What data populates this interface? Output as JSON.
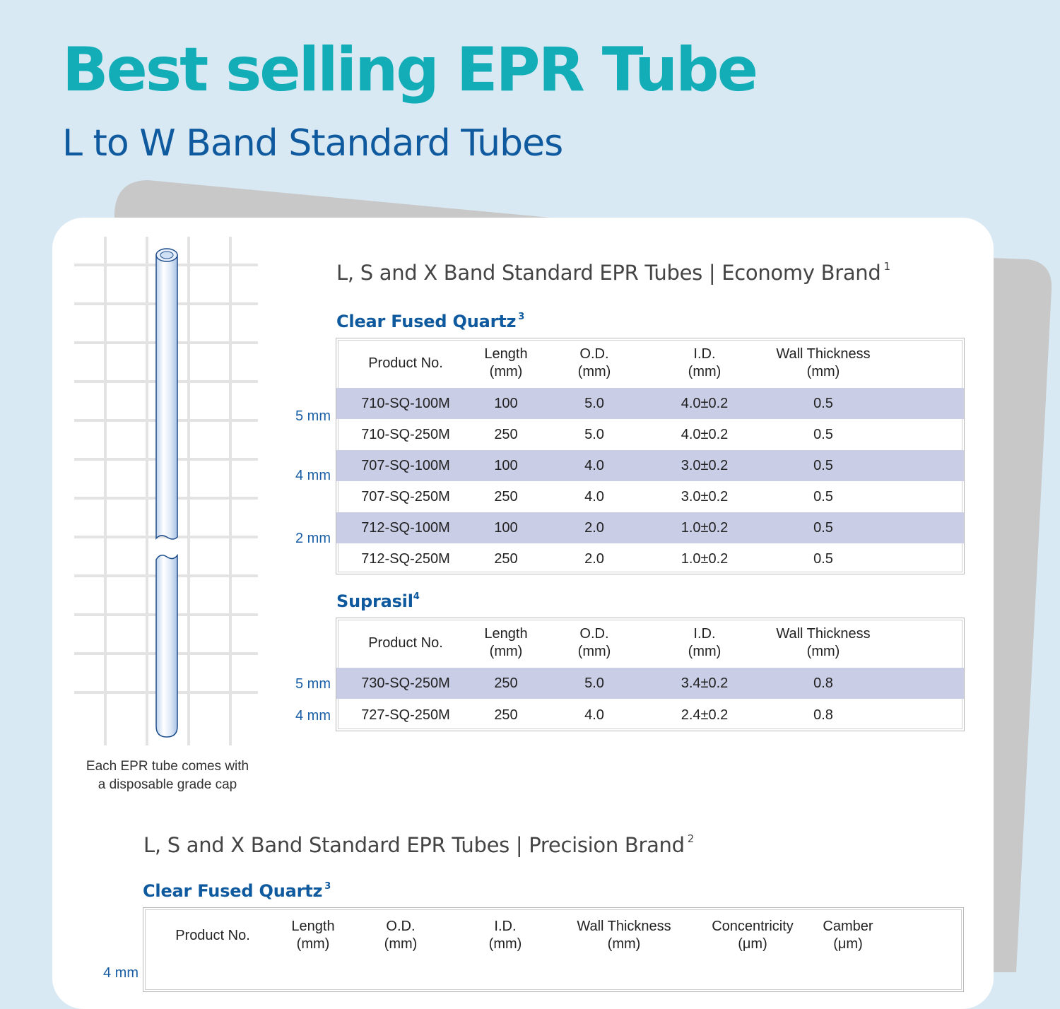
{
  "page": {
    "title": "Best selling EPR Tube",
    "subtitle": "L to W Band Standard Tubes"
  },
  "illustration": {
    "caption": "Each EPR tube comes with\na disposable grade cap"
  },
  "economy": {
    "title": "L, S and X Band Standard EPR Tubes  |  Economy Brand",
    "title_sup": "1",
    "quartz": {
      "title": "Clear Fused Quartz",
      "sup": "3",
      "headers": [
        "Product No.",
        "Length\n(mm)",
        "O.D.\n(mm)",
        "I.D.\n(mm)",
        "Wall Thickness\n(mm)"
      ],
      "rows": [
        [
          "710-SQ-100M",
          "100",
          "5.0",
          "4.0±0.2",
          "0.5"
        ],
        [
          "710-SQ-250M",
          "250",
          "5.0",
          "4.0±0.2",
          "0.5"
        ],
        [
          "707-SQ-100M",
          "100",
          "4.0",
          "3.0±0.2",
          "0.5"
        ],
        [
          "707-SQ-250M",
          "250",
          "4.0",
          "3.0±0.2",
          "0.5"
        ],
        [
          "712-SQ-100M",
          "100",
          "2.0",
          "1.0±0.2",
          "0.5"
        ],
        [
          "712-SQ-250M",
          "250",
          "2.0",
          "1.0±0.2",
          "0.5"
        ]
      ],
      "side_labels": [
        "5 mm",
        "4 mm",
        "2 mm"
      ]
    },
    "suprasil": {
      "title": "Suprasil",
      "sup": "4",
      "headers": [
        "Product No.",
        "Length\n(mm)",
        "O.D.\n(mm)",
        "I.D.\n(mm)",
        "Wall Thickness\n(mm)"
      ],
      "rows": [
        [
          "730-SQ-250M",
          "250",
          "5.0",
          "3.4±0.2",
          "0.8"
        ],
        [
          "727-SQ-250M",
          "250",
          "4.0",
          "2.4±0.2",
          "0.8"
        ]
      ],
      "side_labels": [
        "5 mm",
        "4 mm"
      ]
    }
  },
  "precision": {
    "title": "L, S and X Band Standard EPR Tubes  |  Precision Brand",
    "title_sup": "2",
    "quartz": {
      "title": "Clear Fused Quartz",
      "sup": "3",
      "headers": [
        "Product No.",
        "Length\n(mm)",
        "O.D.\n(mm)",
        "I.D.\n(mm)",
        "Wall Thickness\n(mm)",
        "Concentricity\n(μm)",
        "Camber\n(μm)"
      ],
      "side_labels": [
        "4 mm"
      ]
    }
  },
  "colors": {
    "background": "#d8e9f3",
    "title": "#13adb7",
    "subtitle": "#0f5a9e",
    "row_shade": "#c9cde6"
  }
}
